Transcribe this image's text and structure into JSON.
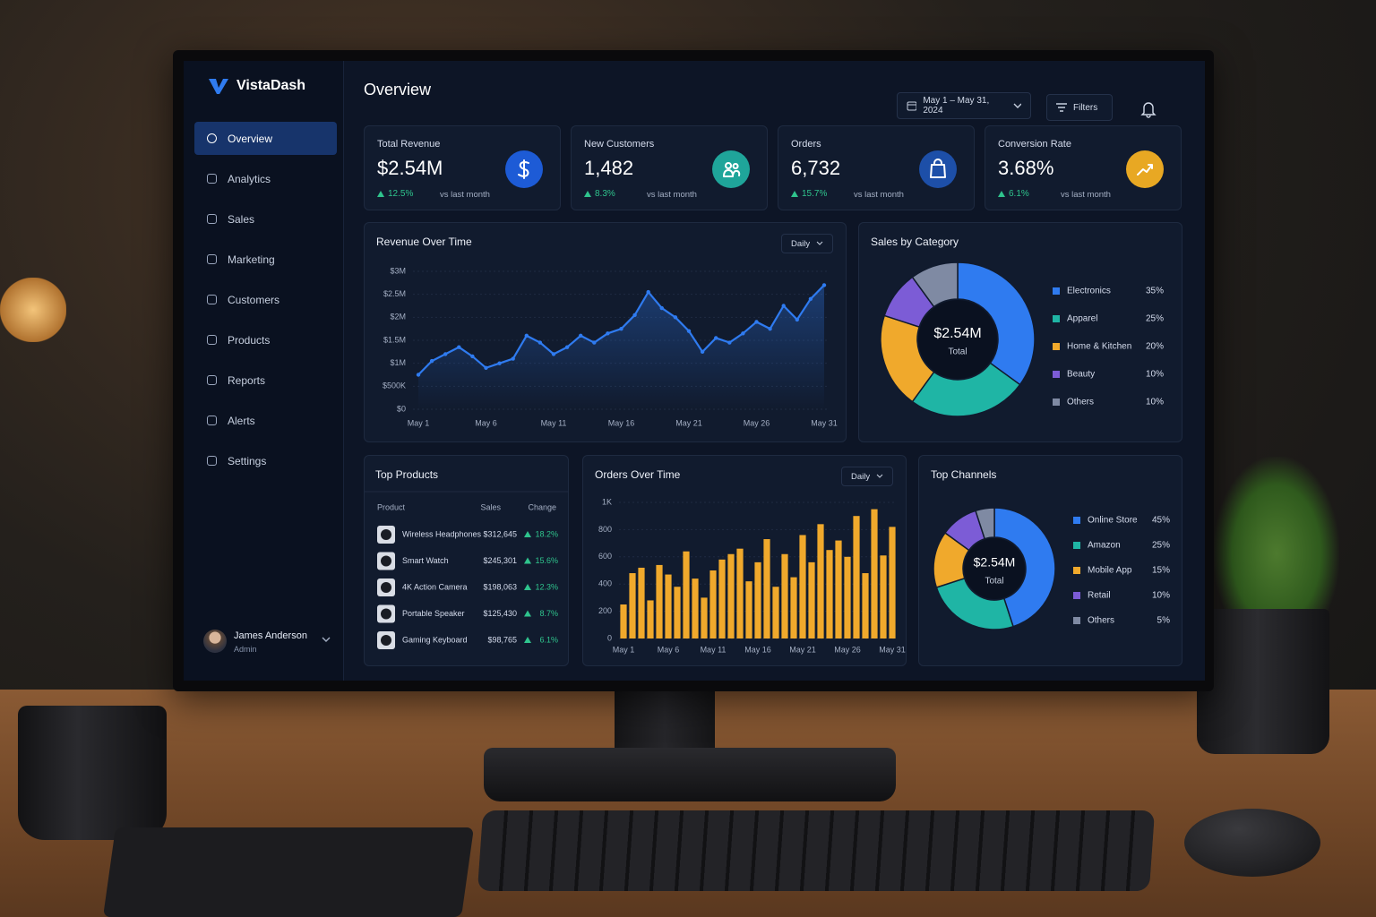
{
  "sidebar": {
    "brand": "VistaDash",
    "nav": [
      "Overview",
      "Analytics",
      "Sales",
      "Marketing",
      "Customers",
      "Products",
      "Reports",
      "Alerts",
      "Settings"
    ],
    "user": {
      "name": "James Anderson",
      "role": "Admin"
    }
  },
  "header": {
    "title": "Overview",
    "date_range": "May 1 – May 31, 2024",
    "filter_label": "Filters"
  },
  "kpis": [
    {
      "label": "Total Revenue",
      "value": "$2.54M",
      "change": "12.5%",
      "note": "vs last month"
    },
    {
      "label": "New Customers",
      "value": "1,482",
      "change": "8.3%",
      "note": "vs last month"
    },
    {
      "label": "Orders",
      "value": "6,732",
      "change": "15.7%",
      "note": "vs last month"
    },
    {
      "label": "Conversion Rate",
      "value": "3.68%",
      "change": "6.1%",
      "note": "vs last month"
    }
  ],
  "top_products": {
    "title": "Top Products",
    "columns": [
      "Product",
      "Sales",
      "Change"
    ],
    "rows": [
      [
        "Wireless Headphones",
        "$312,645",
        "18.2%"
      ],
      [
        "Smart Watch",
        "$245,301",
        "15.6%"
      ],
      [
        "4K Action Camera",
        "$198,063",
        "12.3%"
      ],
      [
        "Portable Speaker",
        "$125,430",
        "8.7%"
      ],
      [
        "Gaming Keyboard",
        "$98,765",
        "6.1%"
      ]
    ]
  },
  "chart_data": [
    {
      "type": "line",
      "title": "Revenue Over Time",
      "period": "Daily",
      "color": "#2f7bf0",
      "grid": true,
      "categories": [
        "May 1",
        null,
        null,
        null,
        null,
        "May 6",
        null,
        null,
        null,
        null,
        "May 11",
        null,
        null,
        null,
        null,
        "May 16",
        null,
        null,
        null,
        null,
        "May 21",
        null,
        null,
        null,
        null,
        "May 26",
        null,
        null,
        null,
        null,
        "May 31"
      ],
      "values": [
        750000,
        1050000,
        1200000,
        1350000,
        1150000,
        900000,
        1000000,
        1100000,
        1600000,
        1450000,
        1200000,
        1350000,
        1600000,
        1450000,
        1650000,
        1750000,
        2050000,
        2550000,
        2200000,
        2000000,
        1700000,
        1250000,
        1550000,
        1450000,
        1650000,
        1900000,
        1750000,
        2250000,
        1950000,
        2400000,
        2700000
      ],
      "ylim": [
        0,
        3000000
      ],
      "yticks": [
        {
          "value": 0,
          "label": "$0"
        },
        {
          "value": 500000,
          "label": "$500K"
        },
        {
          "value": 1000000,
          "label": "$1M"
        },
        {
          "value": 1500000,
          "label": "$1.5M"
        },
        {
          "value": 2000000,
          "label": "$2M"
        },
        {
          "value": 2500000,
          "label": "$2.5M"
        },
        {
          "value": 3000000,
          "label": "$3M"
        }
      ]
    },
    {
      "type": "donut",
      "title": "Sales by Category",
      "center_value": "$2.54M",
      "center_label": "Total",
      "categories": [
        "Electronics",
        "Apparel",
        "Home & Kitchen",
        "Beauty",
        "Others"
      ],
      "values": [
        35,
        25,
        20,
        10,
        10
      ],
      "value_labels": [
        "35%",
        "25%",
        "20%",
        "10%",
        "10%"
      ],
      "colors": [
        "#2f7bf0",
        "#1fb5a5",
        "#f0a92c",
        "#7c5cd6",
        "#7f8aa3"
      ]
    },
    {
      "type": "bar",
      "title": "Orders Over Time",
      "period": "Daily",
      "color": "#f0a92c",
      "grid": true,
      "categories": [
        "May 1",
        null,
        null,
        null,
        null,
        "May 6",
        null,
        null,
        null,
        null,
        "May 11",
        null,
        null,
        null,
        null,
        "May 16",
        null,
        null,
        null,
        null,
        "May 21",
        null,
        null,
        null,
        null,
        "May 26",
        null,
        null,
        null,
        null,
        "May 31"
      ],
      "values": [
        250,
        480,
        520,
        280,
        540,
        470,
        380,
        640,
        440,
        300,
        500,
        580,
        620,
        660,
        420,
        560,
        730,
        380,
        620,
        450,
        760,
        560,
        840,
        650,
        720,
        600,
        900,
        480,
        950,
        610,
        820
      ],
      "ylim": [
        0,
        1000
      ],
      "yticks": [
        0,
        200,
        400,
        600,
        800,
        {
          "value": 1000,
          "label": "1K"
        }
      ]
    },
    {
      "type": "donut",
      "title": "Top Channels",
      "center_value": "$2.54M",
      "center_label": "Total",
      "categories": [
        "Online Store",
        "Amazon",
        "Mobile App",
        "Retail",
        "Others"
      ],
      "values": [
        45,
        25,
        15,
        10,
        5
      ],
      "value_labels": [
        "45%",
        "25%",
        "15%",
        "10%",
        "5%"
      ],
      "colors": [
        "#2f7bf0",
        "#1fb5a5",
        "#f0a92c",
        "#7c5cd6",
        "#7f8aa3"
      ]
    }
  ]
}
